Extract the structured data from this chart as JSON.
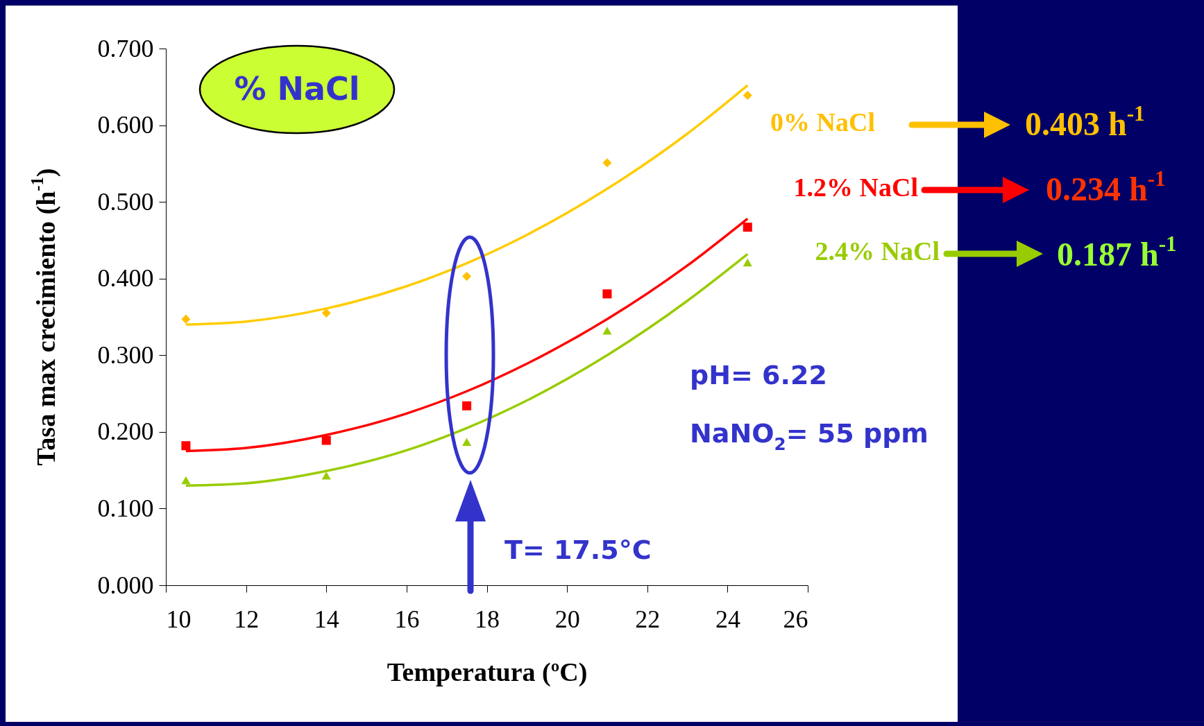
{
  "chart_data": {
    "type": "scatter",
    "xlabel": "Temperatura (ºC)",
    "ylabel": "Tasa max crecimiento (h$^{-1}$)",
    "xlim": [
      10,
      26
    ],
    "xticks": [
      10,
      12,
      14,
      16,
      18,
      20,
      22,
      24,
      26
    ],
    "ylim": [
      0,
      0.7
    ],
    "yticks": [
      {
        "value": 0,
        "label": "0.000"
      },
      {
        "value": 0.1,
        "label": "0.100"
      },
      {
        "value": 0.2,
        "label": "0.200"
      },
      {
        "value": 0.3,
        "label": "0.300"
      },
      {
        "value": 0.4,
        "label": "0.400"
      },
      {
        "value": 0.5,
        "label": "0.500"
      },
      {
        "value": 0.6,
        "label": "0.600"
      },
      {
        "value": 0.7,
        "label": "0.700"
      }
    ],
    "grid": false,
    "legend": "top right",
    "series": [
      {
        "name": "0% NaCl",
        "marker": "diamond",
        "color": "#ffc000",
        "x": [
          10.5,
          14,
          17.5,
          21,
          24.5
        ],
        "values": [
          0.347,
          0.355,
          0.403,
          0.551,
          0.639
        ]
      },
      {
        "name": "1.2% NaCl",
        "marker": "square",
        "color": "#ff0000",
        "x": [
          10.5,
          14,
          17.5,
          21,
          24.5
        ],
        "values": [
          0.182,
          0.189,
          0.234,
          0.38,
          0.467
        ]
      },
      {
        "name": "2.4% NaCl",
        "marker": "triangle",
        "color": "#99cc00",
        "x": [
          10.5,
          14,
          17.5,
          21,
          24.5
        ],
        "values": [
          0.137,
          0.143,
          0.187,
          0.332,
          0.421
        ]
      },
      {
        "type": "line",
        "color": "#ffcc00",
        "x": [
          10.5,
          12,
          14,
          16,
          17.5,
          19,
          21,
          23,
          24.5
        ],
        "values": [
          0.34,
          0.344,
          0.361,
          0.39,
          0.42,
          0.457,
          0.517,
          0.589,
          0.652
        ]
      },
      {
        "type": "line",
        "color": "#ff0000",
        "x": [
          10.5,
          12,
          14,
          16,
          17.5,
          19,
          21,
          23,
          24.5
        ],
        "values": [
          0.175,
          0.179,
          0.196,
          0.224,
          0.253,
          0.289,
          0.347,
          0.417,
          0.478
        ]
      },
      {
        "type": "line",
        "color": "#99cc00",
        "x": [
          10.5,
          12,
          14,
          16,
          17.5,
          19,
          21,
          23,
          24.5
        ],
        "values": [
          0.13,
          0.133,
          0.149,
          0.176,
          0.205,
          0.241,
          0.3,
          0.371,
          0.432
        ]
      }
    ],
    "annotations": [
      "% NaCl",
      "0.403 h$^{-1}$",
      "0.234 h$^{-1}$",
      "0.187 h$^{-1}$",
      "pH= 6.22",
      "NaNO$_{2}$= 55 ppm",
      "T= 17.5°C"
    ]
  }
}
